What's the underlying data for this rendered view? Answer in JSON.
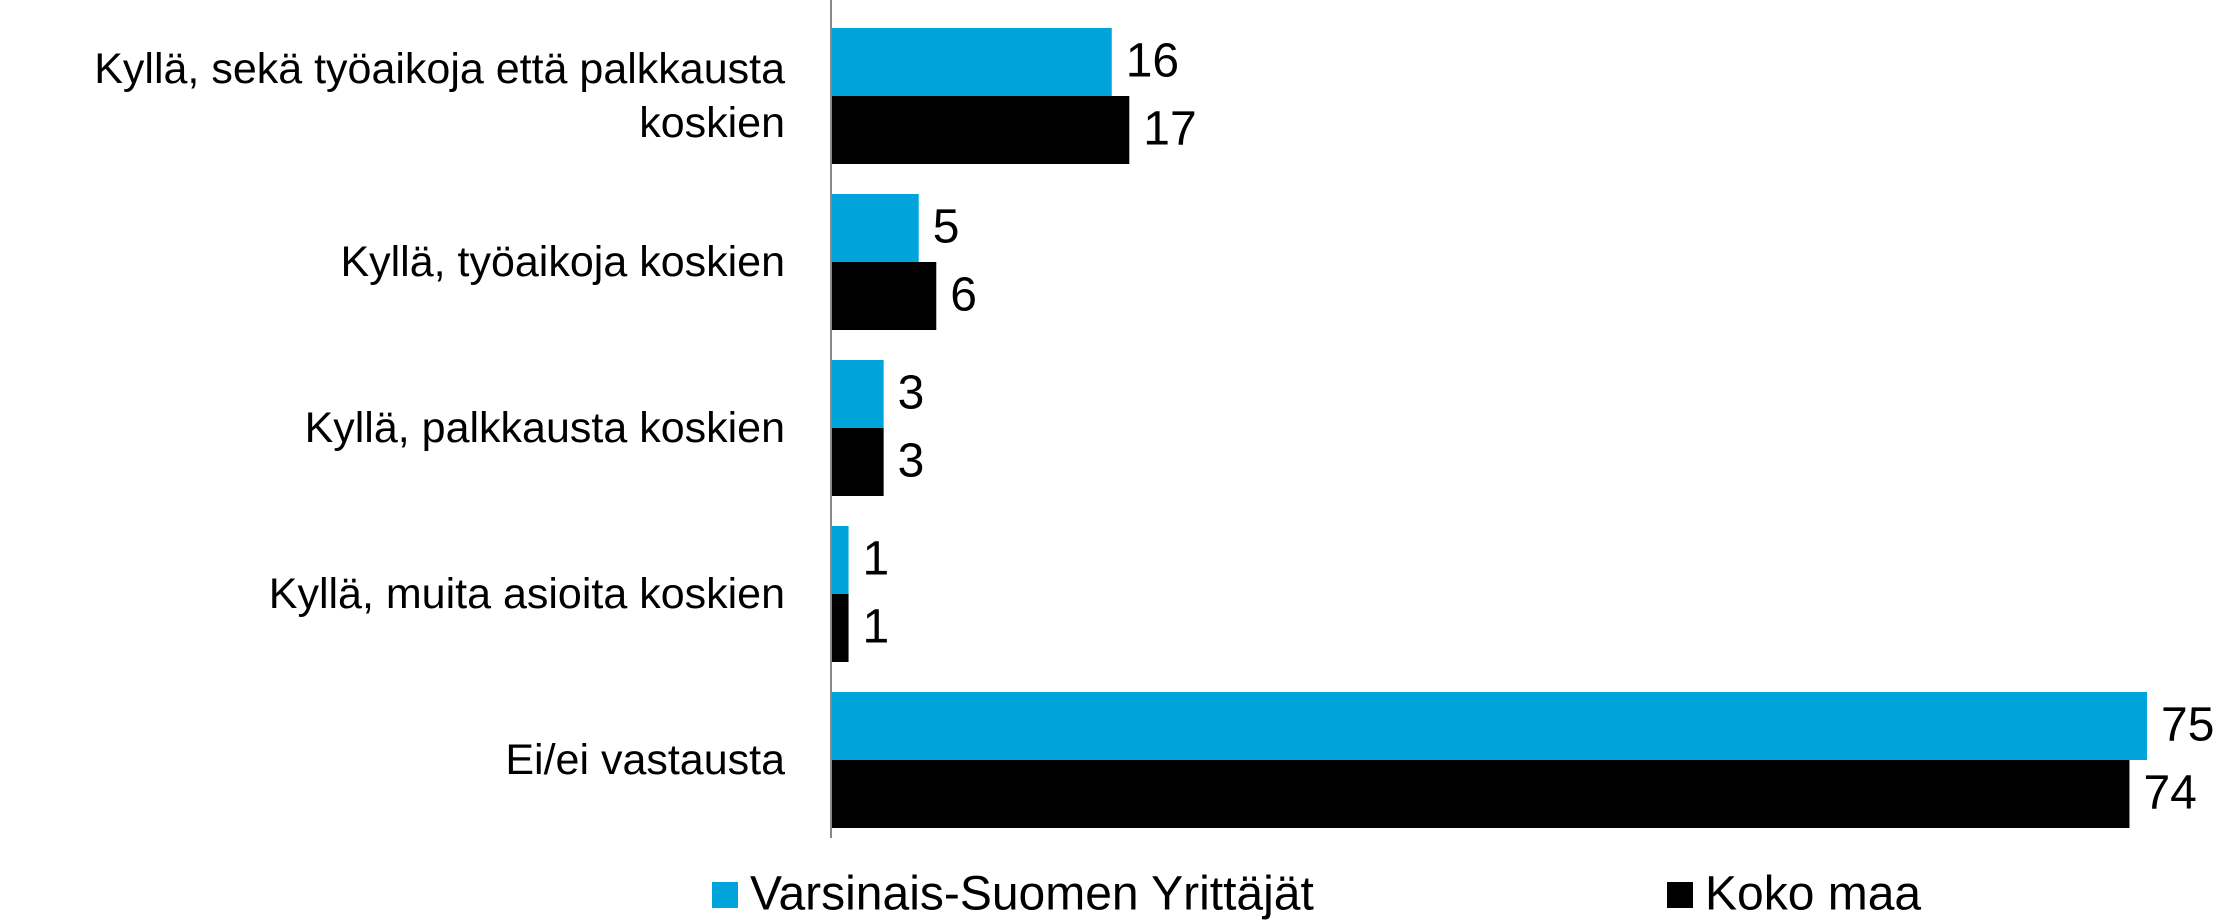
{
  "chart_data": {
    "type": "bar",
    "orientation": "horizontal",
    "categories": [
      "Kyllä, sekä työaikoja että palkkausta koskien",
      "Kyllä, työaikoja koskien",
      "Kyllä, palkkausta koskien",
      "Kyllä, muita asioita koskien",
      "Ei/ei vastausta"
    ],
    "series": [
      {
        "name": "Varsinais-Suomen Yrittäjät",
        "color": "#00a3da",
        "values": [
          16,
          5,
          3,
          1,
          75
        ]
      },
      {
        "name": "Koko maa",
        "color": "#000000",
        "values": [
          17,
          6,
          3,
          1,
          74
        ]
      }
    ],
    "legend": "bottom"
  }
}
